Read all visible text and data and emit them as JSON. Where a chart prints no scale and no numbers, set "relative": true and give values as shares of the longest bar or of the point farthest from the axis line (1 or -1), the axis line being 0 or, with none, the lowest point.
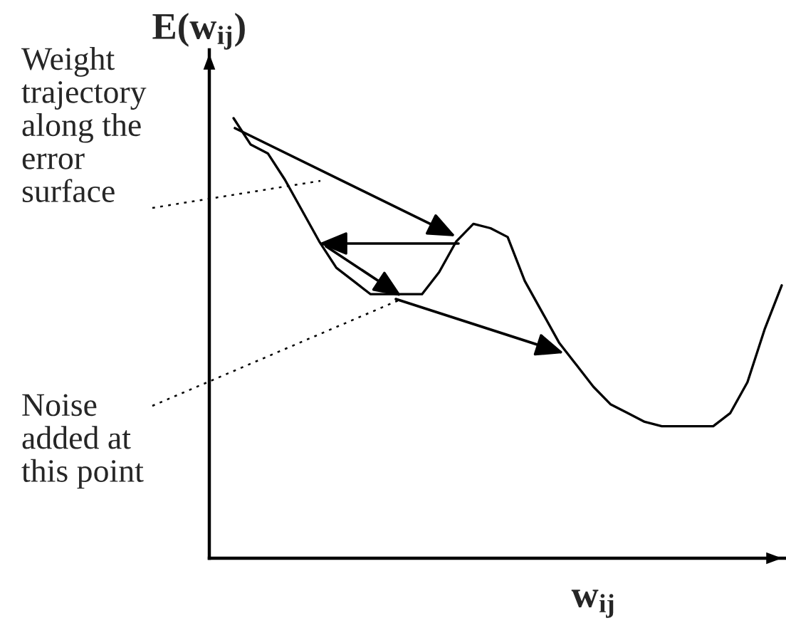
{
  "chart_data": {
    "type": "line",
    "relative": true,
    "xlabel": "w$_{ij}$",
    "ylabel": "E(w$_{ij}$)",
    "categories": [
      null,
      null,
      null,
      null,
      null,
      null,
      null,
      null,
      null,
      null,
      null,
      null,
      null,
      null,
      null,
      null,
      null,
      null,
      null,
      null,
      null,
      null,
      null,
      null,
      null,
      null,
      null,
      null,
      null,
      null,
      null,
      null,
      null
    ],
    "series": [
      {
        "color": "#000000",
        "values": [
          1.0,
          0.94,
          0.92,
          0.86,
          0.79,
          0.72,
          0.66,
          0.63,
          0.6,
          0.6,
          0.6,
          0.6,
          0.65,
          0.72,
          0.76,
          0.75,
          0.73,
          0.63,
          0.56,
          0.49,
          0.44,
          0.39,
          0.35,
          0.33,
          0.31,
          0.3,
          0.3,
          0.3,
          0.3,
          0.33,
          0.4,
          0.52,
          0.62
        ]
      }
    ],
    "annotations": [
      "Weight trajectory along the error surface",
      "Noise added at this point"
    ],
    "legend": false
  }
}
